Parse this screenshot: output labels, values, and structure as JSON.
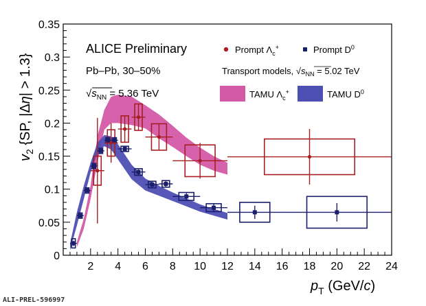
{
  "chart_data": {
    "type": "scatter",
    "title": "",
    "xlabel_main": "p",
    "xlabel_sub": "T",
    "xlabel_rest": " (GeV/c)",
    "ylabel": "v2 {SP, |Δη| > 1.3}",
    "xlim": [
      0,
      24
    ],
    "ylim": [
      0,
      0.35
    ],
    "x_ticks": [
      "2",
      "4",
      "6",
      "8",
      "10",
      "12",
      "14",
      "16",
      "18",
      "20",
      "22",
      "24"
    ],
    "y_ticks": [
      "0",
      "0.05",
      "0.1",
      "0.15",
      "0.2",
      "0.25",
      "0.3",
      "0.35"
    ],
    "grid": false,
    "annotations": {
      "experiment": "ALICE Preliminary",
      "system": "Pb–Pb, 30–50%",
      "energy": "√sNN = 5.36 TeV",
      "models": "Transport models, √sNN = 5.02 TeV"
    },
    "legend": {
      "position": "top-right",
      "entries": [
        "Prompt Λc+",
        "Prompt D0",
        "TAMU Λc+",
        "TAMU D0"
      ]
    },
    "watermark": "ALI-PREL-596997",
    "colors": {
      "lambda_c": "#a61e22",
      "d0": "#1b1f6b",
      "tamu_lambda": "#d35aa5",
      "tamu_d0": "#4e4fb3"
    },
    "series": [
      {
        "name": "Prompt Λc+",
        "points": [
          {
            "x": 2.5,
            "xlo": 2,
            "xhi": 3,
            "y": 0.128,
            "stat": 0.08,
            "syst": 0.022
          },
          {
            "x": 3.5,
            "xlo": 3,
            "xhi": 4,
            "y": 0.17,
            "stat": 0.03,
            "syst": 0.02
          },
          {
            "x": 4.5,
            "xlo": 4,
            "xhi": 5,
            "y": 0.191,
            "stat": 0.02,
            "syst": 0.02
          },
          {
            "x": 5.5,
            "xlo": 5,
            "xhi": 6,
            "y": 0.209,
            "stat": 0.02,
            "syst": 0.02
          },
          {
            "x": 7.0,
            "xlo": 6,
            "xhi": 8,
            "y": 0.179,
            "stat": 0.02,
            "syst": 0.02
          },
          {
            "x": 10.0,
            "xlo": 8,
            "xhi": 12,
            "y": 0.143,
            "stat": 0.027,
            "syst": 0.024
          },
          {
            "x": 18.0,
            "xlo": 12,
            "xhi": 24,
            "y": 0.149,
            "stat": 0.042,
            "syst": 0.027
          }
        ]
      },
      {
        "name": "Prompt D0",
        "points": [
          {
            "x": 0.75,
            "xlo": 0.5,
            "xhi": 1.0,
            "y": 0.018,
            "stat": 0.004,
            "syst": 0.007
          },
          {
            "x": 1.25,
            "xlo": 1.0,
            "xhi": 1.5,
            "y": 0.06,
            "stat": 0.003,
            "syst": 0.004
          },
          {
            "x": 1.75,
            "xlo": 1.5,
            "xhi": 2.0,
            "y": 0.098,
            "stat": 0.003,
            "syst": 0.004
          },
          {
            "x": 2.25,
            "xlo": 2.0,
            "xhi": 2.5,
            "y": 0.135,
            "stat": 0.003,
            "syst": 0.004
          },
          {
            "x": 2.75,
            "xlo": 2.5,
            "xhi": 3.0,
            "y": 0.158,
            "stat": 0.003,
            "syst": 0.004
          },
          {
            "x": 3.25,
            "xlo": 3.0,
            "xhi": 3.5,
            "y": 0.174,
            "stat": 0.003,
            "syst": 0.004
          },
          {
            "x": 3.75,
            "xlo": 3.5,
            "xhi": 4.0,
            "y": 0.174,
            "stat": 0.003,
            "syst": 0.004
          },
          {
            "x": 4.5,
            "xlo": 4.0,
            "xhi": 5.0,
            "y": 0.161,
            "stat": 0.003,
            "syst": 0.004
          },
          {
            "x": 5.5,
            "xlo": 5.0,
            "xhi": 6.0,
            "y": 0.126,
            "stat": 0.004,
            "syst": 0.005
          },
          {
            "x": 6.5,
            "xlo": 6.0,
            "xhi": 7.0,
            "y": 0.107,
            "stat": 0.004,
            "syst": 0.005
          },
          {
            "x": 7.5,
            "xlo": 7.0,
            "xhi": 8.0,
            "y": 0.108,
            "stat": 0.005,
            "syst": 0.005
          },
          {
            "x": 9.0,
            "xlo": 8.0,
            "xhi": 10.0,
            "y": 0.089,
            "stat": 0.005,
            "syst": 0.006
          },
          {
            "x": 11.0,
            "xlo": 10.0,
            "xhi": 12.0,
            "y": 0.072,
            "stat": 0.007,
            "syst": 0.006
          },
          {
            "x": 14.0,
            "xlo": 12.0,
            "xhi": 16.0,
            "y": 0.065,
            "stat": 0.01,
            "syst": 0.015
          },
          {
            "x": 20.0,
            "xlo": 16.0,
            "xhi": 24.0,
            "y": 0.065,
            "stat": 0.014,
            "syst": 0.024
          }
        ]
      },
      {
        "name": "TAMU Λc+",
        "x": [
          1.0,
          1.5,
          2.0,
          2.5,
          3.0,
          3.5,
          4.0,
          5.0,
          6.0,
          7.0,
          8.0,
          9.0,
          10.0,
          11.0,
          12.0
        ],
        "lo": [
          0.012,
          0.04,
          0.085,
          0.14,
          0.19,
          0.2,
          0.2,
          0.197,
          0.192,
          0.177,
          0.164,
          0.15,
          0.137,
          0.128,
          0.122
        ],
        "hi": [
          0.02,
          0.055,
          0.105,
          0.18,
          0.22,
          0.24,
          0.243,
          0.24,
          0.227,
          0.213,
          0.196,
          0.178,
          0.163,
          0.15,
          0.14
        ]
      },
      {
        "name": "TAMU D0",
        "x": [
          0.5,
          1.0,
          1.5,
          2.0,
          2.5,
          3.0,
          3.5,
          4.0,
          5.0,
          6.0,
          7.0,
          8.0,
          9.0,
          10.0,
          11.0,
          12.0
        ],
        "lo": [
          0.008,
          0.045,
          0.085,
          0.125,
          0.155,
          0.165,
          0.16,
          0.145,
          0.115,
          0.098,
          0.09,
          0.082,
          0.074,
          0.066,
          0.06,
          0.054
        ],
        "hi": [
          0.018,
          0.065,
          0.105,
          0.14,
          0.17,
          0.182,
          0.18,
          0.168,
          0.137,
          0.116,
          0.105,
          0.095,
          0.086,
          0.077,
          0.07,
          0.064
        ]
      }
    ]
  }
}
